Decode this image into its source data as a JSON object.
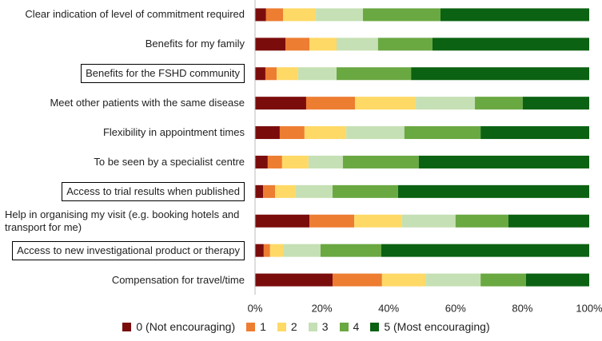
{
  "chart_data": {
    "type": "stacked_barh",
    "categories": [
      "Clear indication of level of commitment required",
      "Benefits for my family",
      "Benefits for the FSHD community",
      "Meet other patients with the same disease",
      "Flexibility in appointment times",
      "To be seen by a specialist centre",
      "Access to trial results when published",
      "Help in organising my visit (e.g. booking hotels and transport for me)",
      "Access to new investigational product or therapy",
      "Compensation for travel/time"
    ],
    "series": [
      {
        "name": "0 (Not encouraging)",
        "color": "#7b0c0c",
        "values": [
          3.3,
          9.1,
          3.1,
          15.3,
          7.4,
          3.8,
          2.4,
          16.3,
          2.6,
          23.2
        ]
      },
      {
        "name": "1",
        "color": "#ed7d31",
        "values": [
          5.1,
          7.2,
          3.4,
          14.6,
          7.4,
          4.3,
          3.6,
          13.4,
          1.9,
          14.8
        ]
      },
      {
        "name": "2",
        "color": "#ffd966",
        "values": [
          9.8,
          8.1,
          6.4,
          18.2,
          12.5,
          7.9,
          6.0,
          14.3,
          3.9,
          13.0
        ]
      },
      {
        "name": "3",
        "color": "#c5e0b4",
        "values": [
          14.1,
          12.4,
          11.5,
          17.7,
          17.4,
          10.3,
          11.2,
          16.0,
          11.2,
          16.5
        ]
      },
      {
        "name": "4",
        "color": "#6aa842",
        "values": [
          23.2,
          16.3,
          22.3,
          14.3,
          22.8,
          22.7,
          19.6,
          15.8,
          18.2,
          13.6
        ]
      },
      {
        "name": "5 (Most encouraging)",
        "color": "#0b6212",
        "values": [
          44.5,
          46.9,
          53.3,
          19.9,
          32.5,
          51.0,
          57.2,
          24.2,
          62.2,
          18.9
        ]
      }
    ],
    "xlim": [
      0,
      100
    ],
    "xticks": [
      {
        "value": 0,
        "label": "0%"
      },
      {
        "value": 20,
        "label": "20%"
      },
      {
        "value": 40,
        "label": "40%"
      },
      {
        "value": 60,
        "label": "60%"
      },
      {
        "value": 80,
        "label": "80%"
      },
      {
        "value": 100,
        "label": "100%"
      }
    ],
    "boxed": [
      2,
      6,
      8
    ],
    "grid": false
  }
}
